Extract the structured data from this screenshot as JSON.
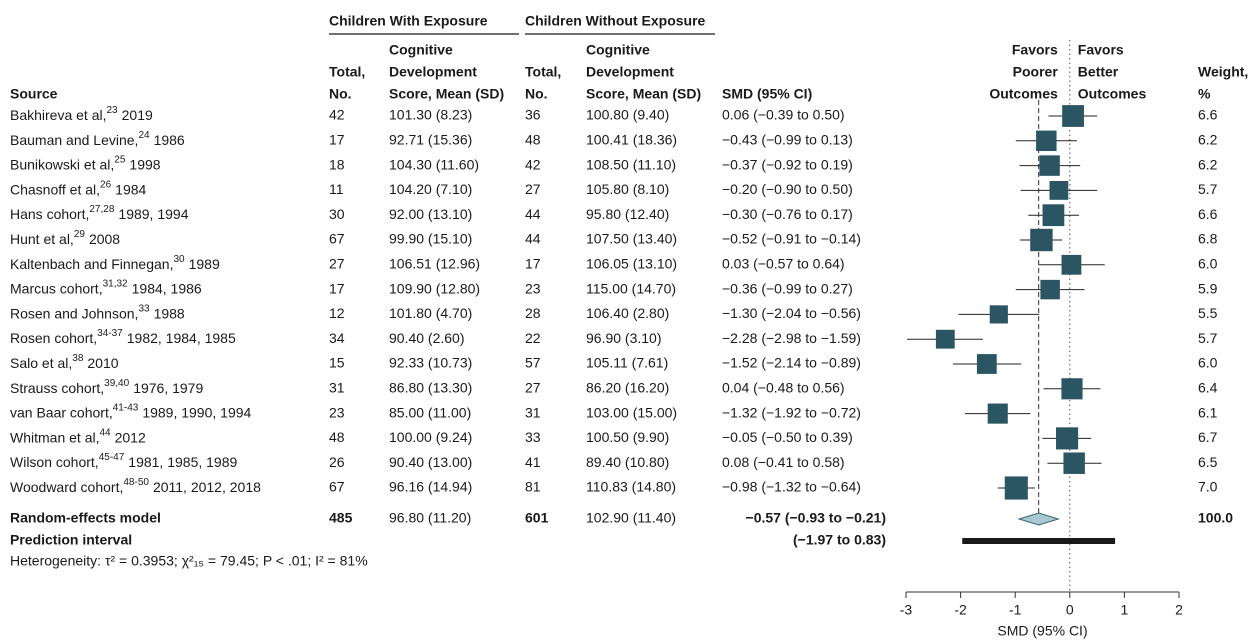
{
  "chart_data": {
    "type": "forest",
    "group_headers": [
      "Children With Exposure",
      "Children Without Exposure"
    ],
    "col_source": [
      "Source"
    ],
    "col_total": [
      "Total,",
      "No."
    ],
    "col_score": [
      "Cognitive",
      "Development",
      "Score, Mean (SD)"
    ],
    "col_smd": [
      "SMD (95% CI)"
    ],
    "col_weight": [
      "Weight,",
      "%"
    ],
    "left_label": [
      "Favors",
      "Poorer",
      "Outcomes"
    ],
    "right_label": [
      "Favors",
      "Better",
      "Outcomes"
    ],
    "rows": [
      {
        "name": "Bakhireva et al,",
        "ref": "23",
        "year": "2019",
        "n1": 42,
        "score1": "101.30 (8.23)",
        "n2": 36,
        "score2": "100.80 (9.40)",
        "smd_label": "0.06 (−0.39 to 0.50)",
        "smd": 0.06,
        "lo": -0.39,
        "hi": 0.5,
        "weight": 6.6
      },
      {
        "name": "Bauman and Levine,",
        "ref": "24",
        "year": "1986",
        "n1": 17,
        "score1": "92.71 (15.36)",
        "n2": 48,
        "score2": "100.41 (18.36)",
        "smd_label": "−0.43 (−0.99 to 0.13)",
        "smd": -0.43,
        "lo": -0.99,
        "hi": 0.13,
        "weight": 6.2
      },
      {
        "name": "Bunikowski et al,",
        "ref": "25",
        "year": "1998",
        "n1": 18,
        "score1": "104.30 (11.60)",
        "n2": 42,
        "score2": "108.50 (11.10)",
        "smd_label": "−0.37 (−0.92 to 0.19)",
        "smd": -0.37,
        "lo": -0.92,
        "hi": 0.19,
        "weight": 6.2
      },
      {
        "name": "Chasnoff et al,",
        "ref": "26",
        "year": "1984",
        "n1": 11,
        "score1": "104.20 (7.10)",
        "n2": 27,
        "score2": "105.80 (8.10)",
        "smd_label": "−0.20 (−0.90 to 0.50)",
        "smd": -0.2,
        "lo": -0.9,
        "hi": 0.5,
        "weight": 5.7
      },
      {
        "name": "Hans cohort,",
        "ref": "27,28",
        "year": "1989, 1994",
        "n1": 30,
        "score1": "92.00 (13.10)",
        "n2": 44,
        "score2": "95.80 (12.40)",
        "smd_label": "−0.30 (−0.76 to 0.17)",
        "smd": -0.3,
        "lo": -0.76,
        "hi": 0.17,
        "weight": 6.6
      },
      {
        "name": "Hunt et al,",
        "ref": "29",
        "year": "2008",
        "n1": 67,
        "score1": "99.90 (15.10)",
        "n2": 44,
        "score2": "107.50 (13.40)",
        "smd_label": "−0.52 (−0.91 to −0.14)",
        "smd": -0.52,
        "lo": -0.91,
        "hi": -0.14,
        "weight": 6.8
      },
      {
        "name": "Kaltenbach and Finnegan,",
        "ref": "30",
        "year": "1989",
        "n1": 27,
        "score1": "106.51 (12.96)",
        "n2": 17,
        "score2": "106.05 (13.10)",
        "smd_label": "0.03 (−0.57 to 0.64)",
        "smd": 0.03,
        "lo": -0.57,
        "hi": 0.64,
        "weight": {
          "value": 6,
          "label": "6.0"
        }
      },
      {
        "name": "Marcus cohort,",
        "ref": "31,32",
        "year": "1984, 1986",
        "n1": 17,
        "score1": "109.90 (12.80)",
        "n2": 23,
        "score2": "115.00 (14.70)",
        "smd_label": "−0.36 (−0.99 to 0.27)",
        "smd": -0.36,
        "lo": -0.99,
        "hi": 0.27,
        "weight": 5.9
      },
      {
        "name": "Rosen and Johnson,",
        "ref": "33",
        "year": "1988",
        "n1": 12,
        "score1": "101.80 (4.70)",
        "n2": 28,
        "score2": "106.40 (2.80)",
        "smd_label": "−1.30 (−2.04 to −0.56)",
        "smd": -1.3,
        "lo": -2.04,
        "hi": -0.56,
        "weight": 5.5
      },
      {
        "name": "Rosen cohort,",
        "ref": "34-37",
        "year": "1982, 1984, 1985",
        "n1": 34,
        "score1": "90.40 (2.60)",
        "n2": 22,
        "score2": "96.90 (3.10)",
        "smd_label": "−2.28 (−2.98 to −1.59)",
        "smd": -2.28,
        "lo": -2.98,
        "hi": -1.59,
        "weight": 5.7
      },
      {
        "name": "Salo et al,",
        "ref": "38",
        "year": "2010",
        "n1": 15,
        "score1": "92.33 (10.73)",
        "n2": 57,
        "score2": "105.11 (7.61)",
        "smd_label": "−1.52 (−2.14 to −0.89)",
        "smd": -1.52,
        "lo": -2.14,
        "hi": -0.89,
        "weight": {
          "value": 6,
          "label": "6.0"
        }
      },
      {
        "name": "Strauss cohort,",
        "ref": "39,40",
        "year": "1976, 1979",
        "n1": 31,
        "score1": "86.80 (13.30)",
        "n2": 27,
        "score2": "86.20 (16.20)",
        "smd_label": "0.04 (−0.48 to 0.56)",
        "smd": 0.04,
        "lo": -0.48,
        "hi": 0.56,
        "weight": 6.4
      },
      {
        "name": "van Baar cohort,",
        "ref": "41-43",
        "year": "1989, 1990, 1994",
        "n1": 23,
        "score1": "85.00 (11.00)",
        "n2": 31,
        "score2": "103.00 (15.00)",
        "smd_label": "−1.32 (−1.92 to −0.72)",
        "smd": -1.32,
        "lo": -1.92,
        "hi": -0.72,
        "weight": 6.1
      },
      {
        "name": "Whitman et al,",
        "ref": "44",
        "year": "2012",
        "n1": 48,
        "score1": "100.00 (9.24)",
        "n2": 33,
        "score2": "100.50 (9.90)",
        "smd_label": "−0.05 (−0.50 to 0.39)",
        "smd": -0.05,
        "lo": -0.5,
        "hi": 0.39,
        "weight": 6.7
      },
      {
        "name": "Wilson cohort,",
        "ref": "45-47",
        "year": "1981, 1985, 1989",
        "n1": 26,
        "score1": "90.40 (13.00)",
        "n2": 41,
        "score2": "89.40 (10.80)",
        "smd_label": "0.08 (−0.41 to 0.58)",
        "smd": 0.08,
        "lo": -0.41,
        "hi": 0.58,
        "weight": 6.5
      },
      {
        "name": "Woodward cohort,",
        "ref": "48-50",
        "year": "2011, 2012, 2018",
        "n1": 67,
        "score1": "96.16 (14.94)",
        "n2": 81,
        "score2": "110.83 (14.80)",
        "smd_label": "−0.98 (−1.32 to −0.64)",
        "smd": -0.98,
        "lo": -1.32,
        "hi": -0.64,
        "weight": {
          "value": 7,
          "label": "7.0"
        }
      }
    ],
    "summary": {
      "name": "Random-effects model",
      "n1": 485,
      "score1": "96.80 (11.20)",
      "n2": 601,
      "score2": "102.90 (11.40)",
      "smd_label": "−0.57 (−0.93 to −0.21)",
      "smd": -0.57,
      "lo": -0.93,
      "hi": -0.21,
      "weight": {
        "value": 100,
        "label": "100.0"
      }
    },
    "prediction": {
      "name": "Prediction interval",
      "label": "(−1.97 to 0.83)",
      "lo": -1.97,
      "hi": 0.83
    },
    "heterogeneity": "Heterogeneity: τ² = 0.3953; χ²₁₅ = 79.45; P < .01; I² = 81%",
    "xlabel": "SMD (95% CI)",
    "xlim": [
      -3,
      2
    ],
    "xticks": [
      -3,
      -2,
      -1,
      0,
      1,
      2
    ],
    "color": "#2c5563",
    "diamond_color": "#a9c9d2"
  }
}
